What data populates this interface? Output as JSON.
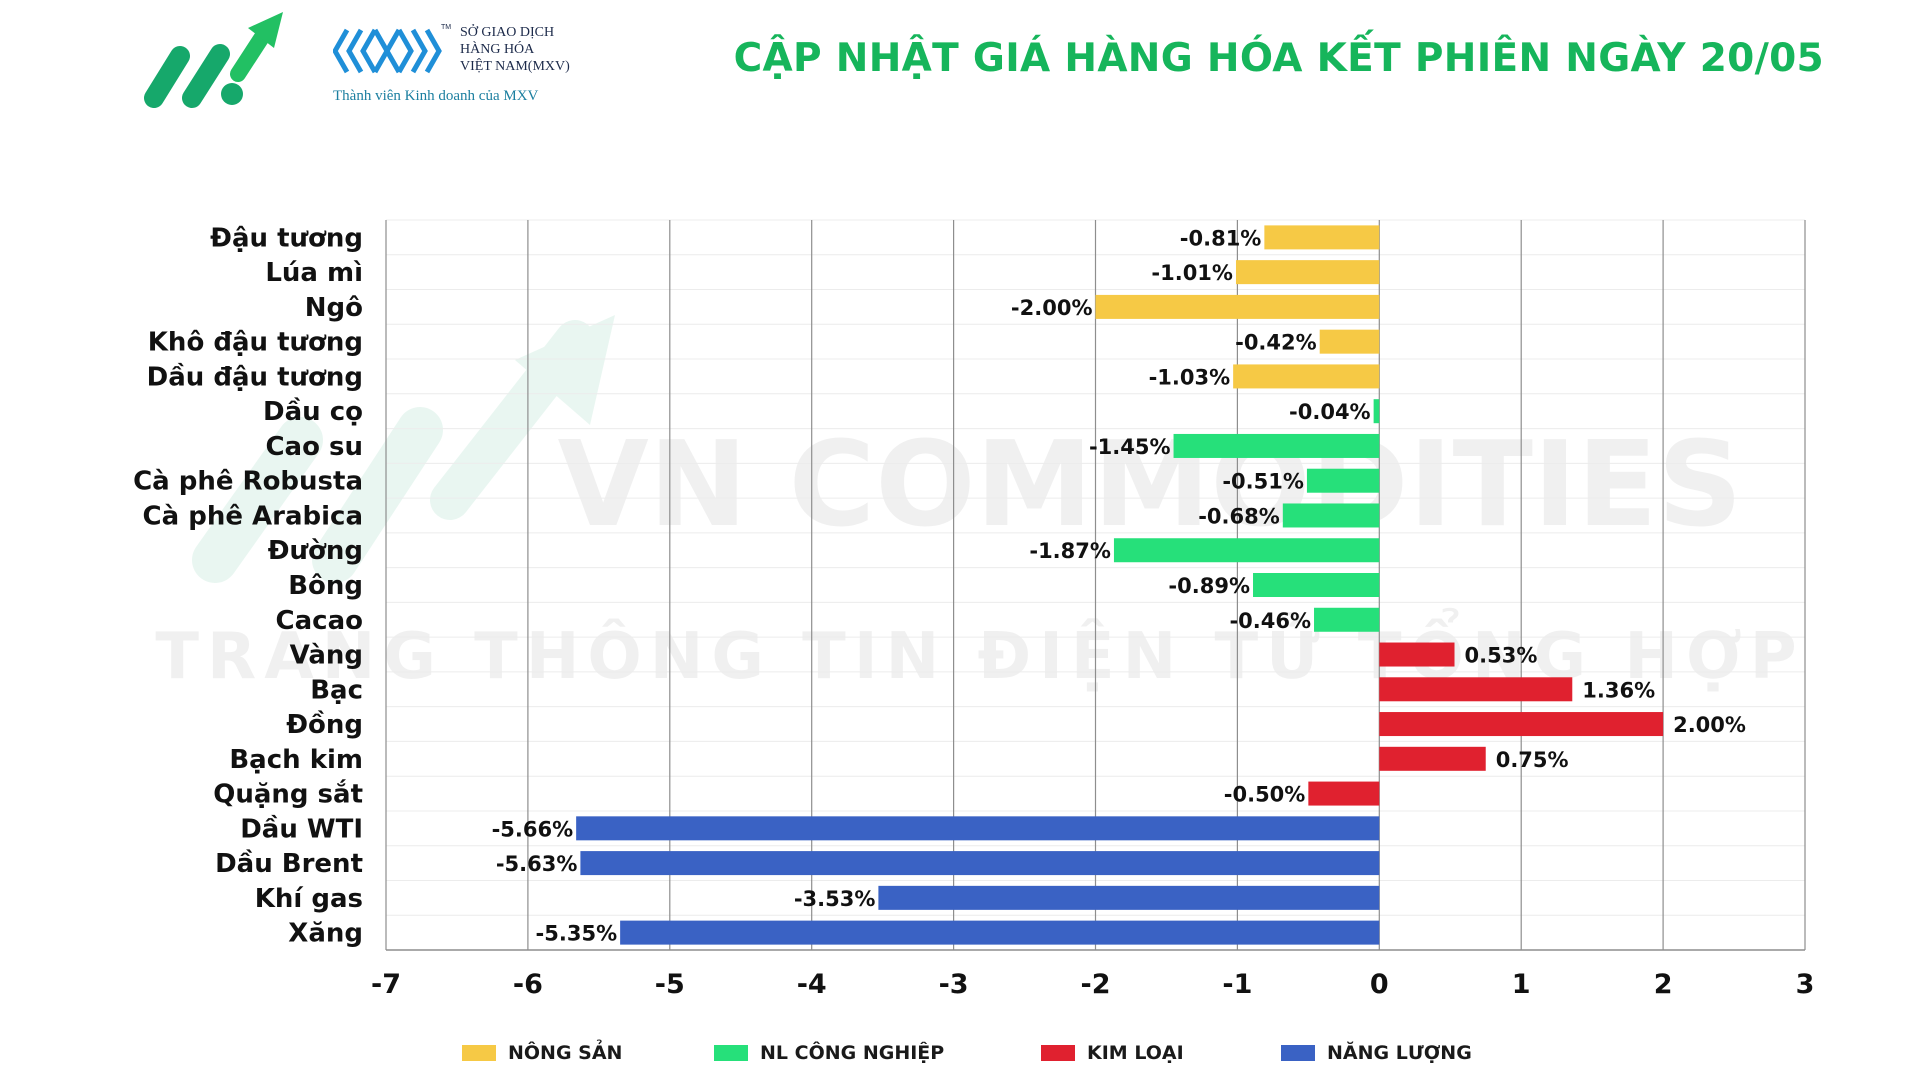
{
  "header": {
    "title": "CẬP NHẬT GIÁ HÀNG HÓA KẾT PHIÊN NGÀY 20/05",
    "partner_lines": [
      "SỞ GIAO DỊCH",
      "HÀNG HÓA",
      "VIỆT NAM(MXV)"
    ],
    "partner_tm": "TM",
    "partner_sub": "Thành viên Kinh doanh của MXV"
  },
  "watermark": {
    "main": "VN COMMODITIES",
    "sub": "TRANG THÔNG TIN ĐIỆN TỬ TỔNG HỢP"
  },
  "colors": {
    "nong_san": "#f6c945",
    "nl_cong_nghiep": "#26e07a",
    "kim_loai": "#e0212f",
    "nang_luong": "#3a62c4",
    "title": "#16b55b"
  },
  "chart_data": {
    "type": "bar",
    "orientation": "horizontal",
    "xlim": [
      -7,
      3
    ],
    "xticks": [
      -7,
      -6,
      -5,
      -4,
      -3,
      -2,
      -1,
      0,
      1,
      2,
      3
    ],
    "grid": true,
    "legend_position": "bottom",
    "categories": [
      "Đậu tương",
      "Lúa mì",
      "Ngô",
      "Khô đậu tương",
      "Dầu đậu tương",
      "Dầu cọ",
      "Cao su",
      "Cà phê Robusta",
      "Cà phê Arabica",
      "Đường",
      "Bông",
      "Cacao",
      "Vàng",
      "Bạc",
      "Đồng",
      "Bạch kim",
      "Quặng sắt",
      "Dầu WTI",
      "Dầu Brent",
      "Khí gas",
      "Xăng"
    ],
    "values": [
      -0.81,
      -1.01,
      -2.0,
      -0.42,
      -1.03,
      -0.04,
      -1.45,
      -0.51,
      -0.68,
      -1.87,
      -0.89,
      -0.46,
      0.53,
      1.36,
      2.0,
      0.75,
      -0.5,
      -5.66,
      -5.63,
      -3.53,
      -5.35
    ],
    "labels": [
      "-0.81%",
      "-1.01%",
      "-2.00%",
      "-0.42%",
      "-1.03%",
      "-0.04%",
      "-1.45%",
      "-0.51%",
      "-0.68%",
      "-1.87%",
      "-0.89%",
      "-0.46%",
      "0.53%",
      "1.36%",
      "2.00%",
      "0.75%",
      "-0.50%",
      "-5.66%",
      "-5.63%",
      "-3.53%",
      "-5.35%"
    ],
    "groups": [
      0,
      0,
      0,
      0,
      0,
      1,
      1,
      1,
      1,
      1,
      1,
      1,
      2,
      2,
      2,
      2,
      2,
      3,
      3,
      3,
      3
    ],
    "series": [
      {
        "name": "NÔNG SẢN",
        "color": "#f6c945"
      },
      {
        "name": "NL CÔNG NGHIỆP",
        "color": "#26e07a"
      },
      {
        "name": "KIM LOẠI",
        "color": "#e0212f"
      },
      {
        "name": "NĂNG LƯỢNG",
        "color": "#3a62c4"
      }
    ]
  }
}
